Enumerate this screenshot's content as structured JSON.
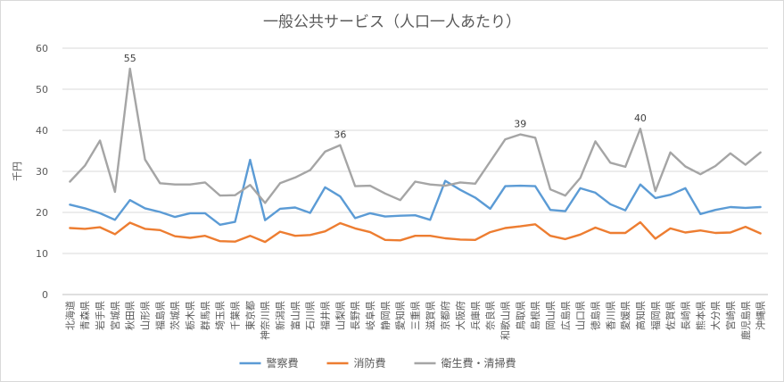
{
  "chart_data": {
    "type": "line",
    "title": "一般公共サービス（人口一人あたり）",
    "ylabel": "千円",
    "xlabel": "",
    "ylim": [
      0,
      60
    ],
    "yticks": [
      0,
      10,
      20,
      30,
      40,
      50,
      60
    ],
    "grid": true,
    "legend_position": "bottom",
    "categories": [
      "北海道",
      "青森県",
      "岩手県",
      "宮城県",
      "秋田県",
      "山形県",
      "福島県",
      "茨城県",
      "栃木県",
      "群馬県",
      "埼玉県",
      "千葉県",
      "東京都",
      "神奈川県",
      "新潟県",
      "富山県",
      "石川県",
      "福井県",
      "山梨県",
      "長野県",
      "岐阜県",
      "静岡県",
      "愛知県",
      "三重県",
      "滋賀県",
      "京都府",
      "大阪府",
      "兵庫県",
      "奈良県",
      "和歌山県",
      "鳥取県",
      "島根県",
      "岡山県",
      "広島県",
      "山口県",
      "徳島県",
      "香川県",
      "愛媛県",
      "高知県",
      "福岡県",
      "佐賀県",
      "長崎県",
      "熊本県",
      "大分県",
      "宮崎県",
      "鹿児島県",
      "沖縄県"
    ],
    "series": [
      {
        "name": "警察費",
        "color": "#5b9bd5",
        "values": [
          21.9,
          21.0,
          19.8,
          18.2,
          23.0,
          21.0,
          20.1,
          18.9,
          19.8,
          19.8,
          17.0,
          17.7,
          32.8,
          18.1,
          20.9,
          21.2,
          19.9,
          26.1,
          23.9,
          18.6,
          19.8,
          19.0,
          19.2,
          19.3,
          18.2,
          27.7,
          25.5,
          23.6,
          20.9,
          26.4,
          26.5,
          26.4,
          20.6,
          20.3,
          25.9,
          24.8,
          22.0,
          20.5,
          26.8,
          23.5,
          24.3,
          25.9,
          19.6,
          20.6,
          21.3,
          21.1,
          21.3
        ]
      },
      {
        "name": "消防費",
        "color": "#ed7d31",
        "values": [
          16.2,
          16.0,
          16.4,
          14.7,
          17.5,
          16.0,
          15.7,
          14.2,
          13.8,
          14.3,
          13.0,
          12.9,
          14.3,
          12.8,
          15.3,
          14.3,
          14.5,
          15.4,
          17.4,
          16.1,
          15.2,
          13.3,
          13.2,
          14.3,
          14.3,
          13.7,
          13.4,
          13.3,
          15.2,
          16.2,
          16.6,
          17.1,
          14.3,
          13.5,
          14.6,
          16.3,
          15.0,
          15.0,
          17.6,
          13.6,
          16.1,
          15.1,
          15.6,
          15.0,
          15.1,
          16.5,
          14.9
        ]
      },
      {
        "name": "衛生費・清掃費",
        "color": "#a5a5a5",
        "values": [
          27.5,
          31.4,
          37.5,
          25.0,
          55.0,
          32.9,
          27.1,
          26.8,
          26.8,
          27.3,
          24.1,
          24.2,
          26.7,
          22.3,
          27.1,
          28.5,
          30.3,
          34.8,
          36.4,
          26.4,
          26.5,
          24.6,
          23.0,
          27.5,
          26.8,
          26.5,
          27.3,
          27.0,
          32.4,
          37.8,
          39.0,
          38.2,
          25.6,
          24.1,
          28.4,
          37.3,
          32.1,
          31.1,
          40.4,
          25.2,
          34.6,
          31.2,
          29.3,
          31.3,
          34.4,
          31.6,
          34.6
        ]
      }
    ],
    "annotations": [
      {
        "series": "衛生費・清掃費",
        "category": "秋田県",
        "label": "55"
      },
      {
        "series": "衛生費・清掃費",
        "category": "山梨県",
        "label": "36"
      },
      {
        "series": "衛生費・清掃費",
        "category": "鳥取県",
        "label": "39"
      },
      {
        "series": "衛生費・清掃費",
        "category": "高知県",
        "label": "40"
      }
    ]
  }
}
